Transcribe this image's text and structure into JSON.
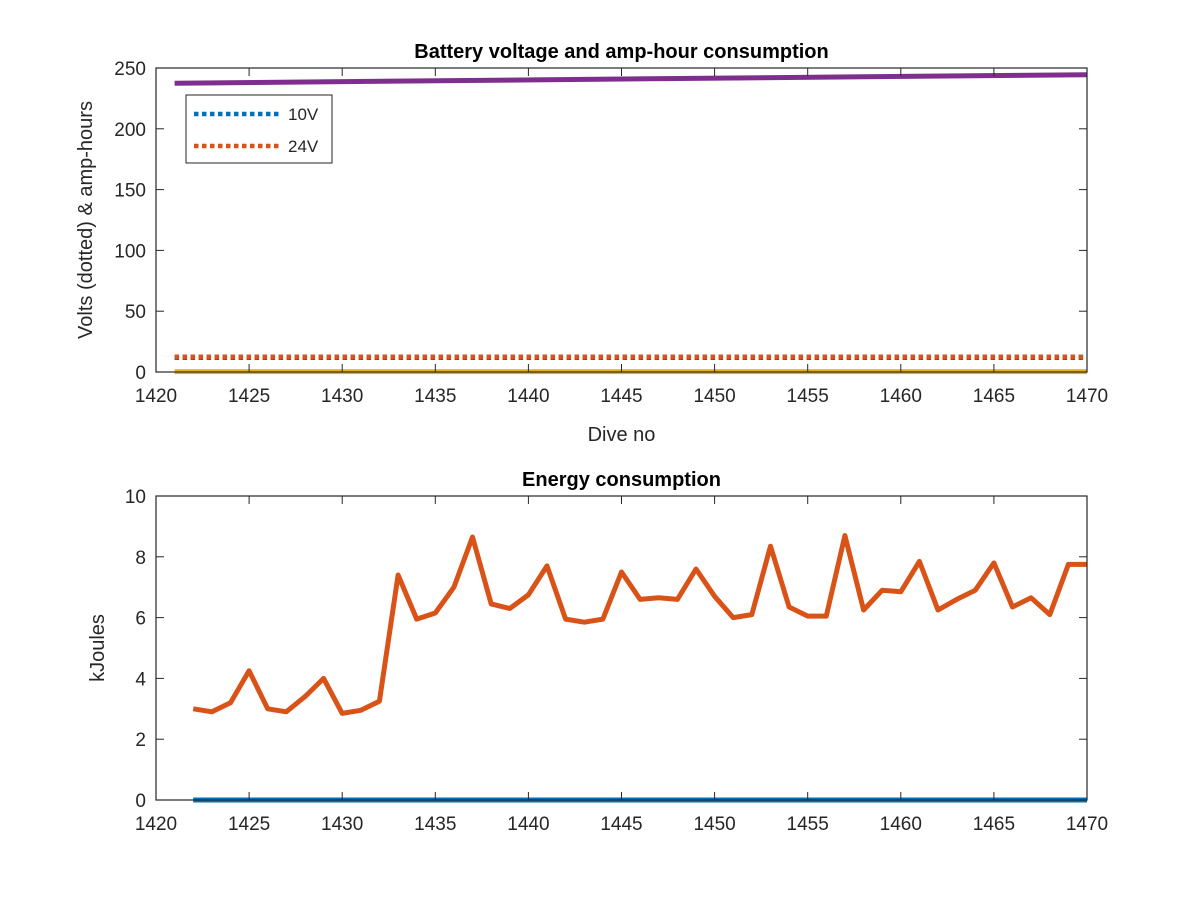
{
  "chart_data": [
    {
      "type": "line",
      "title": "Battery voltage and amp-hour consumption",
      "xlabel": "Dive no",
      "ylabel": "Volts (dotted) & amp-hours",
      "xlim": [
        1420,
        1470
      ],
      "ylim": [
        0,
        250
      ],
      "xticks": [
        1420,
        1425,
        1430,
        1435,
        1440,
        1445,
        1450,
        1455,
        1460,
        1465,
        1470
      ],
      "yticks": [
        0,
        50,
        100,
        150,
        200,
        250
      ],
      "grid": false,
      "legend_placement": "top-left",
      "series": [
        {
          "name": "10V",
          "style": "dotted",
          "color": "#0072BD",
          "x": [
            1421,
            1470
          ],
          "y": [
            11.8,
            11.8
          ]
        },
        {
          "name": "24V",
          "style": "dotted",
          "color": "#D95319",
          "x": [
            1421,
            1470
          ],
          "y": [
            12.6,
            12.6
          ]
        },
        {
          "style": "solid",
          "color": "#EDB120",
          "x": [
            1421,
            1470
          ],
          "y": [
            0.3,
            0.3
          ]
        },
        {
          "style": "solid",
          "color": "#7E2F8E",
          "x": [
            1421,
            1470
          ],
          "y": [
            237.5,
            244.5
          ]
        }
      ]
    },
    {
      "type": "line",
      "title": "Energy consumption",
      "xlabel": "",
      "ylabel": "kJoules",
      "xlim": [
        1420,
        1470
      ],
      "ylim": [
        0,
        10
      ],
      "xticks": [
        1420,
        1425,
        1430,
        1435,
        1440,
        1445,
        1450,
        1455,
        1460,
        1465,
        1470
      ],
      "yticks": [
        0,
        2,
        4,
        6,
        8,
        10
      ],
      "grid": false,
      "series": [
        {
          "style": "solid",
          "color": "#0072BD",
          "x": [
            1422,
            1470
          ],
          "y": [
            0.0,
            0.0
          ]
        },
        {
          "style": "solid",
          "color": "#D95319",
          "x": [
            1422,
            1423,
            1424,
            1425,
            1426,
            1427,
            1428,
            1429,
            1430,
            1431,
            1432,
            1433,
            1434,
            1435,
            1436,
            1437,
            1438,
            1439,
            1440,
            1441,
            1442,
            1443,
            1444,
            1445,
            1446,
            1447,
            1448,
            1449,
            1450,
            1451,
            1452,
            1453,
            1454,
            1455,
            1456,
            1457,
            1458,
            1459,
            1460,
            1461,
            1462,
            1463,
            1464,
            1465,
            1466,
            1467,
            1468,
            1469,
            1470
          ],
          "y": [
            3.0,
            2.9,
            3.2,
            4.25,
            3.0,
            2.9,
            3.4,
            4.0,
            2.85,
            2.95,
            3.25,
            7.4,
            5.95,
            6.15,
            7.0,
            8.65,
            6.45,
            6.3,
            6.75,
            7.7,
            5.95,
            5.85,
            5.95,
            7.5,
            6.6,
            6.65,
            6.6,
            7.6,
            6.7,
            6.0,
            6.1,
            8.35,
            6.35,
            6.05,
            6.05,
            8.7,
            6.25,
            6.9,
            6.85,
            7.85,
            6.25,
            6.6,
            6.9,
            7.8,
            6.35,
            6.65,
            6.1,
            7.75,
            7.75
          ]
        }
      ]
    }
  ]
}
